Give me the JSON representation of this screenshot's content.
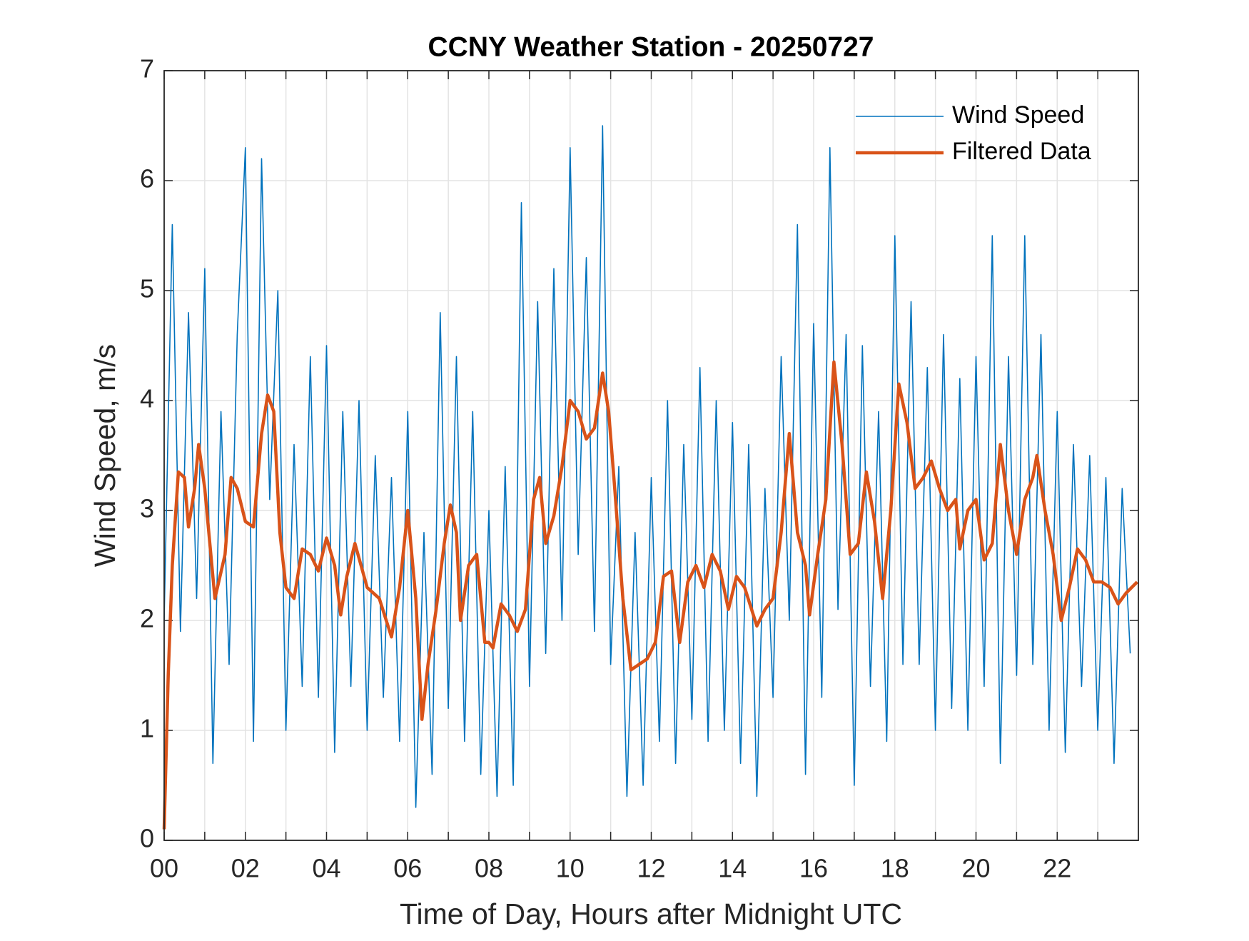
{
  "chart_data": {
    "type": "line",
    "title": "CCNY Weather Station - 20250727",
    "xlabel": "Time of Day, Hours after Midnight UTC",
    "ylabel": "Wind Speed, m/s",
    "xlim": [
      0,
      24
    ],
    "ylim": [
      0,
      7
    ],
    "xticks": [
      {
        "value": 0,
        "label": "00"
      },
      {
        "value": 2,
        "label": "02"
      },
      {
        "value": 4,
        "label": "04"
      },
      {
        "value": 6,
        "label": "06"
      },
      {
        "value": 8,
        "label": "08"
      },
      {
        "value": 10,
        "label": "10"
      },
      {
        "value": 12,
        "label": "12"
      },
      {
        "value": 14,
        "label": "14"
      },
      {
        "value": 16,
        "label": "16"
      },
      {
        "value": 18,
        "label": "18"
      },
      {
        "value": 20,
        "label": "20"
      },
      {
        "value": 22,
        "label": "22"
      }
    ],
    "x_minor_ticks": [
      1,
      3,
      5,
      7,
      9,
      11,
      13,
      15,
      17,
      19,
      21,
      23
    ],
    "yticks": [
      0,
      1,
      2,
      3,
      4,
      5,
      6,
      7
    ],
    "grid": true,
    "legend": "northeast",
    "series": [
      {
        "name": "Wind Speed",
        "color": "#0072BD",
        "width": 1.6,
        "x": [
          0,
          0.2,
          0.4,
          0.6,
          0.8,
          1,
          1.2,
          1.4,
          1.6,
          1.8,
          2,
          2.2,
          2.4,
          2.6,
          2.8,
          3,
          3.2,
          3.4,
          3.6,
          3.8,
          4,
          4.2,
          4.4,
          4.6,
          4.8,
          5,
          5.2,
          5.4,
          5.6,
          5.8,
          6,
          6.2,
          6.4,
          6.6,
          6.8,
          7,
          7.2,
          7.4,
          7.6,
          7.8,
          8,
          8.2,
          8.4,
          8.6,
          8.8,
          9,
          9.2,
          9.4,
          9.6,
          9.8,
          10,
          10.2,
          10.4,
          10.6,
          10.8,
          11,
          11.2,
          11.4,
          11.6,
          11.8,
          12,
          12.2,
          12.4,
          12.6,
          12.8,
          13,
          13.2,
          13.4,
          13.6,
          13.8,
          14,
          14.2,
          14.4,
          14.6,
          14.8,
          15,
          15.2,
          15.4,
          15.6,
          15.8,
          16,
          16.2,
          16.4,
          16.6,
          16.8,
          17,
          17.2,
          17.4,
          17.6,
          17.8,
          18,
          18.2,
          18.4,
          18.6,
          18.8,
          19,
          19.2,
          19.4,
          19.6,
          19.8,
          20,
          20.2,
          20.4,
          20.6,
          20.8,
          21,
          21.2,
          21.4,
          21.6,
          21.8,
          22,
          22.2,
          22.4,
          22.6,
          22.8,
          23,
          23.2,
          23.4,
          23.6,
          23.8
        ],
        "values": [
          2.0,
          5.6,
          1.9,
          4.8,
          2.2,
          5.2,
          0.7,
          3.9,
          1.6,
          4.6,
          6.3,
          0.9,
          6.2,
          3.1,
          5.0,
          1.0,
          3.6,
          1.4,
          4.4,
          1.3,
          4.5,
          0.8,
          3.9,
          1.4,
          4.0,
          1.0,
          3.5,
          1.3,
          3.3,
          0.9,
          3.9,
          0.3,
          2.8,
          0.6,
          4.8,
          1.2,
          4.4,
          0.9,
          3.9,
          0.6,
          3.0,
          0.4,
          3.4,
          0.5,
          5.8,
          1.4,
          4.9,
          1.7,
          5.2,
          2.0,
          6.3,
          2.6,
          5.3,
          1.9,
          6.5,
          1.6,
          3.4,
          0.4,
          2.8,
          0.5,
          3.3,
          0.9,
          4.0,
          0.7,
          3.6,
          1.1,
          4.3,
          0.9,
          4.0,
          1.0,
          3.8,
          0.7,
          3.6,
          0.4,
          3.2,
          1.3,
          4.4,
          2.0,
          5.6,
          0.6,
          4.7,
          1.3,
          6.3,
          2.1,
          4.6,
          0.5,
          4.5,
          1.4,
          3.9,
          0.9,
          5.5,
          1.6,
          4.9,
          1.6,
          4.3,
          1.0,
          4.6,
          1.2,
          4.2,
          1.0,
          4.4,
          1.4,
          5.5,
          0.7,
          4.4,
          1.5,
          5.5,
          1.6,
          4.6,
          1.0,
          3.9,
          0.8,
          3.6,
          1.4,
          3.5,
          1.0,
          3.3,
          0.7,
          3.2,
          1.7
        ]
      },
      {
        "name": "Filtered Data",
        "color": "#D95319",
        "width": 4.5,
        "x": [
          0,
          0.1,
          0.2,
          0.35,
          0.5,
          0.6,
          0.75,
          0.85,
          1,
          1.25,
          1.5,
          1.65,
          1.8,
          2,
          2.2,
          2.4,
          2.55,
          2.7,
          2.85,
          3,
          3.2,
          3.4,
          3.6,
          3.8,
          4,
          4.2,
          4.35,
          4.5,
          4.7,
          5,
          5.3,
          5.6,
          5.8,
          6,
          6.2,
          6.35,
          6.5,
          6.7,
          6.9,
          7.05,
          7.2,
          7.3,
          7.5,
          7.7,
          7.9,
          8,
          8.1,
          8.3,
          8.5,
          8.7,
          8.9,
          9.1,
          9.25,
          9.4,
          9.6,
          9.8,
          10,
          10.2,
          10.4,
          10.6,
          10.8,
          10.95,
          11.1,
          11.3,
          11.5,
          11.7,
          11.9,
          12.1,
          12.3,
          12.5,
          12.7,
          12.9,
          13.1,
          13.3,
          13.5,
          13.7,
          13.9,
          14.1,
          14.3,
          14.6,
          14.8,
          15,
          15.2,
          15.4,
          15.6,
          15.8,
          15.9,
          16.1,
          16.3,
          16.5,
          16.7,
          16.9,
          17.1,
          17.3,
          17.5,
          17.7,
          17.9,
          18.1,
          18.3,
          18.5,
          18.7,
          18.9,
          19.1,
          19.3,
          19.5,
          19.6,
          19.8,
          20,
          20.2,
          20.4,
          20.6,
          20.8,
          21,
          21.2,
          21.4,
          21.5,
          21.7,
          21.9,
          22.1,
          22.3,
          22.5,
          22.7,
          22.9,
          23.1,
          23.3,
          23.5,
          23.7,
          23.97
        ],
        "values": [
          0.1,
          1.5,
          2.5,
          3.35,
          3.3,
          2.85,
          3.2,
          3.6,
          3.2,
          2.2,
          2.6,
          3.3,
          3.2,
          2.9,
          2.85,
          3.7,
          4.05,
          3.9,
          2.8,
          2.3,
          2.2,
          2.65,
          2.6,
          2.45,
          2.75,
          2.5,
          2.05,
          2.4,
          2.7,
          2.3,
          2.2,
          1.85,
          2.3,
          3.0,
          2.2,
          1.1,
          1.6,
          2.1,
          2.7,
          3.05,
          2.8,
          2.0,
          2.5,
          2.6,
          1.8,
          1.8,
          1.75,
          2.15,
          2.05,
          1.9,
          2.1,
          3.1,
          3.3,
          2.7,
          2.95,
          3.4,
          4.0,
          3.9,
          3.65,
          3.75,
          4.25,
          3.9,
          3.2,
          2.2,
          1.55,
          1.6,
          1.65,
          1.8,
          2.4,
          2.45,
          1.8,
          2.35,
          2.5,
          2.3,
          2.6,
          2.45,
          2.1,
          2.4,
          2.3,
          1.95,
          2.1,
          2.2,
          2.8,
          3.7,
          2.8,
          2.5,
          2.05,
          2.6,
          3.1,
          4.35,
          3.6,
          2.6,
          2.7,
          3.35,
          2.9,
          2.2,
          3.0,
          4.15,
          3.8,
          3.2,
          3.3,
          3.45,
          3.2,
          3.0,
          3.1,
          2.65,
          3.0,
          3.1,
          2.55,
          2.7,
          3.6,
          3.0,
          2.6,
          3.1,
          3.3,
          3.5,
          3.0,
          2.6,
          2.0,
          2.3,
          2.65,
          2.55,
          2.35,
          2.35,
          2.3,
          2.15,
          2.25,
          2.35
        ]
      }
    ]
  }
}
